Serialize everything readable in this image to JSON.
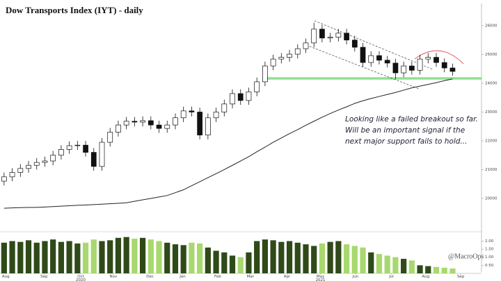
{
  "chart_data": {
    "type": "candlestick",
    "title": "Dow Transports Index (IYT) - daily",
    "annotation": [
      "Looking like a failed breakout so far.",
      "Will be an important signal if the",
      "next major support fails to hold..."
    ],
    "watermark": "@MacroOps",
    "categories": [
      null,
      null,
      null,
      null,
      null,
      null,
      null,
      null,
      null,
      null,
      null,
      null,
      null,
      null,
      null,
      null,
      null,
      null,
      null,
      null,
      null,
      null,
      null,
      null,
      null,
      null,
      null,
      null,
      null,
      null,
      null,
      null,
      null,
      null,
      null,
      null,
      null,
      null,
      null,
      null,
      null,
      null,
      null,
      null,
      null,
      null,
      null,
      null,
      null,
      null,
      null,
      null,
      null,
      null,
      null,
      null
    ],
    "open": [
      20600,
      20750,
      20900,
      21040,
      21150,
      21250,
      21300,
      21500,
      21700,
      21830,
      21850,
      21600,
      21110,
      21950,
      22300,
      22550,
      22680,
      22650,
      22700,
      22550,
      22430,
      22550,
      22800,
      23040,
      23000,
      22200,
      22800,
      23000,
      23280,
      23640,
      23400,
      23700,
      24050,
      24600,
      24840,
      24900,
      25010,
      25200,
      25400,
      25880,
      25570,
      25600,
      25740,
      25500,
      25250,
      24720,
      24960,
      24800,
      24700,
      24360,
      24600,
      24450,
      24840,
      24900,
      24720,
      24530
    ],
    "high": [
      20900,
      21050,
      21190,
      21300,
      21400,
      21450,
      21650,
      21850,
      21980,
      22000,
      22000,
      21750,
      22100,
      22450,
      22700,
      22830,
      22830,
      22850,
      22850,
      22700,
      22700,
      22950,
      23190,
      23190,
      23150,
      22950,
      23150,
      23430,
      23790,
      23790,
      23850,
      24200,
      24750,
      24990,
      25050,
      25160,
      25350,
      25550,
      26100,
      26030,
      25750,
      25890,
      25890,
      25650,
      25400,
      25110,
      25110,
      24950,
      24850,
      24750,
      24750,
      24990,
      25050,
      25050,
      24870,
      24680
    ],
    "low": [
      20450,
      20600,
      20750,
      20890,
      21000,
      21100,
      21150,
      21350,
      21550,
      21680,
      21450,
      20960,
      20960,
      21800,
      22150,
      22400,
      22500,
      22500,
      22400,
      22280,
      22280,
      22400,
      22650,
      22850,
      22050,
      22050,
      22650,
      22850,
      23130,
      23250,
      23250,
      23550,
      23900,
      24450,
      24690,
      24750,
      24860,
      25050,
      25250,
      25420,
      25420,
      25450,
      25350,
      25100,
      24570,
      24570,
      24650,
      24550,
      24150,
      24210,
      24300,
      24300,
      24690,
      24570,
      24380,
      24260
    ],
    "close": [
      20750,
      20900,
      21040,
      21150,
      21250,
      21300,
      21500,
      21700,
      21830,
      21850,
      21600,
      21110,
      21950,
      22300,
      22550,
      22680,
      22650,
      22700,
      22550,
      22430,
      22550,
      22800,
      23040,
      23000,
      22200,
      22800,
      23000,
      23280,
      23640,
      23400,
      23700,
      24050,
      24600,
      24840,
      24900,
      25010,
      25200,
      25400,
      25880,
      25570,
      25600,
      25740,
      25500,
      25250,
      24720,
      24960,
      24800,
      24700,
      24360,
      24600,
      24450,
      24840,
      24900,
      24720,
      24530,
      24410
    ],
    "moving_average": [
      19660,
      19670,
      19680,
      19685,
      19690,
      19700,
      19715,
      19730,
      19745,
      19760,
      19770,
      19785,
      19800,
      19815,
      19830,
      19850,
      19900,
      19950,
      20000,
      20050,
      20100,
      20200,
      20300,
      20440,
      20580,
      20720,
      20860,
      21000,
      21150,
      21300,
      21450,
      21620,
      21780,
      21950,
      22100,
      22250,
      22390,
      22540,
      22680,
      22820,
      22950,
      23070,
      23180,
      23300,
      23390,
      23470,
      23540,
      23610,
      23680,
      23760,
      23840,
      23900,
      23960,
      24020,
      24090,
      24150
    ],
    "volume": [
      1.9,
      2.0,
      1.95,
      2.05,
      1.9,
      2.0,
      2.1,
      1.95,
      2.0,
      1.85,
      1.9,
      2.1,
      2.0,
      2.05,
      2.2,
      2.25,
      2.15,
      2.2,
      2.1,
      2.0,
      1.9,
      1.8,
      1.75,
      1.9,
      1.85,
      1.6,
      1.4,
      1.3,
      1.1,
      1.0,
      1.3,
      2.0,
      2.1,
      2.05,
      1.95,
      2.0,
      1.9,
      1.8,
      1.7,
      1.85,
      1.95,
      2.0,
      1.8,
      1.7,
      1.6,
      1.3,
      1.2,
      1.1,
      1.0,
      0.9,
      0.8,
      0.5,
      0.45,
      0.4,
      0.35,
      0.3
    ],
    "up_color": "#2f4a18",
    "down_color": "#a8d86e",
    "ma_color": "#222222",
    "support_color": "#8fe08f",
    "xlim": [
      -0.5,
      56.5
    ],
    "ylim": [
      19180,
      26650
    ],
    "yticks": [
      20000,
      21000,
      22000,
      23000,
      24000,
      25000,
      26000
    ],
    "volume_lim": [
      0,
      2.45
    ],
    "volume_ticks": [
      {
        "value": 0.5,
        "label": "0.50"
      },
      {
        "value": 1.0,
        "label": "1.00"
      },
      {
        "value": 1.5,
        "label": "1.50"
      },
      {
        "value": 2.0,
        "label": "2.00"
      }
    ],
    "xticks": [
      {
        "value": 0.2,
        "label": "Aug"
      },
      {
        "value": 4.9,
        "label": "Sep"
      },
      {
        "value": 9.4,
        "label": "Oct"
      },
      {
        "value": 13.4,
        "label": "Nov"
      },
      {
        "value": 17.9,
        "label": "Dec"
      },
      {
        "value": 21.9,
        "label": "Jan"
      },
      {
        "value": 26.2,
        "label": "Feb"
      },
      {
        "value": 30.2,
        "label": "Mar"
      },
      {
        "value": 34.7,
        "label": "Apr"
      },
      {
        "value": 38.8,
        "label": "May"
      },
      {
        "value": 43.1,
        "label": "Jun"
      },
      {
        "value": 47.5,
        "label": "Jul"
      },
      {
        "value": 51.7,
        "label": "Aug"
      },
      {
        "value": 56.0,
        "label": "Sep"
      }
    ],
    "year_ticks": [
      {
        "value": 9.4,
        "label": "2020"
      },
      {
        "value": 38.8,
        "label": "2021"
      }
    ]
  }
}
